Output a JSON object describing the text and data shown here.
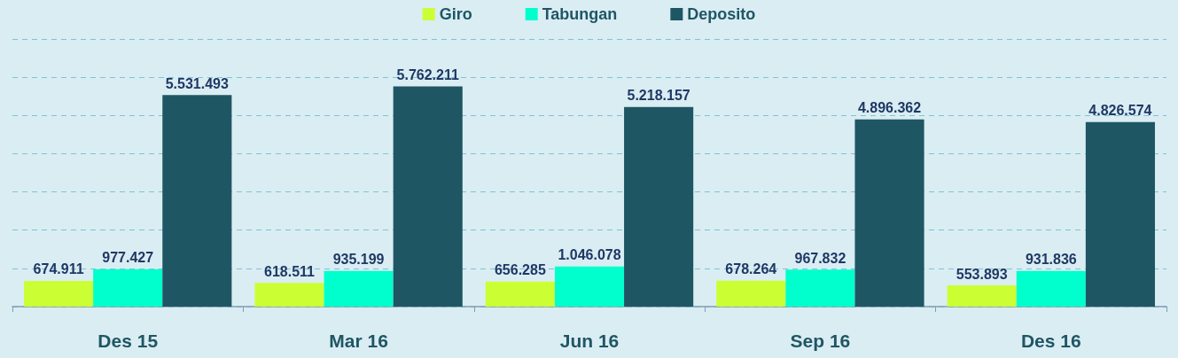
{
  "chart_data": {
    "type": "bar",
    "categories": [
      "Des 15",
      "Mar 16",
      "Jun 16",
      "Sep 16",
      "Des 16"
    ],
    "series": [
      {
        "name": "Giro",
        "color": "#ccff33",
        "values": [
          674911,
          618511,
          656285,
          678264,
          553893
        ],
        "value_labels": [
          "674.911",
          "618.511",
          "656.285",
          "678.264",
          "553.893"
        ]
      },
      {
        "name": "Tabungan",
        "color": "#00ffcc",
        "values": [
          977427,
          935199,
          1046078,
          967832,
          931836
        ],
        "value_labels": [
          "977.427",
          "935.199",
          "1.046.078",
          "967.832",
          "931.836"
        ]
      },
      {
        "name": "Deposito",
        "color": "#1f5664",
        "values": [
          5531493,
          5762211,
          5218157,
          4896362,
          4826574
        ],
        "value_labels": [
          "5.531.493",
          "5.762.211",
          "5.218.157",
          "4.896.362",
          "4.826.574"
        ]
      }
    ],
    "ylim": [
      0,
      7000000
    ],
    "yticks": [
      {
        "value": 0,
        "label": null
      },
      {
        "value": 1000000,
        "label": null
      },
      {
        "value": 2000000,
        "label": null
      },
      {
        "value": 3000000,
        "label": null
      },
      {
        "value": 4000000,
        "label": null
      },
      {
        "value": 5000000,
        "label": null
      },
      {
        "value": 6000000,
        "label": null
      },
      {
        "value": 7000000,
        "label": null
      }
    ],
    "tick_labels": "x",
    "grid": "y",
    "legend": "top"
  }
}
